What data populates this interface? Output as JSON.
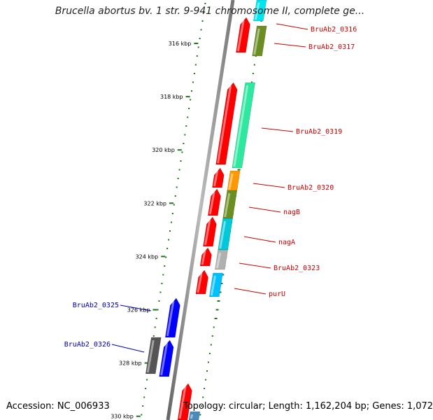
{
  "title": "Brucella abortus bv. 1 str. 9-941 chromosome II, complete ge...",
  "footer": {
    "accession": "Accession: NC_006933",
    "topology": "Topology: circular; Length: 1,162,204 bp; Genes: 1,072"
  },
  "ruler": {
    "labels": [
      "316 kbp",
      "318 kbp",
      "320 kbp",
      "322 kbp",
      "324 kbp",
      "326 kbp",
      "328 kbp",
      "330 kbp"
    ],
    "tick_color": "#1a7a1a"
  },
  "strands": {
    "forward_color": "#ff0000",
    "reverse_color": "#0000ff"
  },
  "genes": [
    {
      "name": "BruAb2_0316",
      "label_color": "#cc0000"
    },
    {
      "name": "BruAb2_0317",
      "label_color": "#cc0000"
    },
    {
      "name": "BruAb2_0319",
      "label_color": "#cc0000"
    },
    {
      "name": "BruAb2_0320",
      "label_color": "#cc0000"
    },
    {
      "name": "nagB",
      "label_color": "#cc0000"
    },
    {
      "name": "nagA",
      "label_color": "#cc0000"
    },
    {
      "name": "BruAb2_0323",
      "label_color": "#cc0000"
    },
    {
      "name": "purU",
      "label_color": "#cc0000"
    },
    {
      "name": "BruAb2_0325",
      "label_color": "#0000aa"
    },
    {
      "name": "BruAb2_0326",
      "label_color": "#0000aa"
    }
  ]
}
